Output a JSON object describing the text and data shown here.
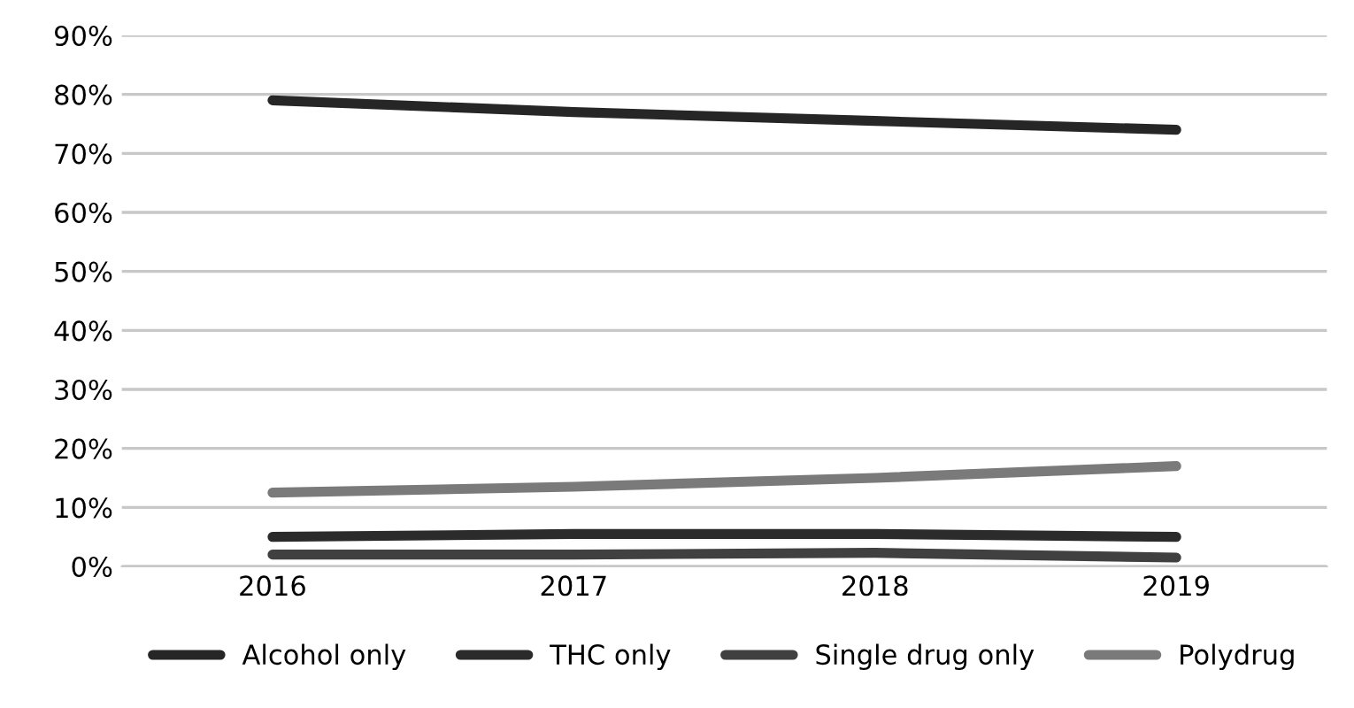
{
  "chart_data": {
    "type": "line",
    "categories": [
      "2016",
      "2017",
      "2018",
      "2019"
    ],
    "series": [
      {
        "name": "Alcohol only",
        "color": "#262626",
        "values": [
          79,
          77,
          75.5,
          74
        ]
      },
      {
        "name": "THC only",
        "color": "#2b2b2b",
        "values": [
          5,
          5.5,
          5.5,
          5
        ]
      },
      {
        "name": "Single drug only",
        "color": "#404040",
        "values": [
          2,
          2,
          2.3,
          1.5
        ]
      },
      {
        "name": "Polydrug",
        "color": "#7a7a7a",
        "values": [
          12.5,
          13.5,
          15,
          17
        ]
      }
    ],
    "ylim": [
      0,
      90
    ],
    "yticks": [
      {
        "value": 0,
        "label": "0%"
      },
      {
        "value": 10,
        "label": "10%"
      },
      {
        "value": 20,
        "label": "20%"
      },
      {
        "value": 30,
        "label": "30%"
      },
      {
        "value": 40,
        "label": "40%"
      },
      {
        "value": 50,
        "label": "50%"
      },
      {
        "value": 60,
        "label": "60%"
      },
      {
        "value": 70,
        "label": "70%"
      },
      {
        "value": 80,
        "label": "80%"
      },
      {
        "value": 90,
        "label": "90%"
      }
    ],
    "grid": "y",
    "legend": "bottom",
    "marker": "none",
    "line_style": "solid"
  }
}
